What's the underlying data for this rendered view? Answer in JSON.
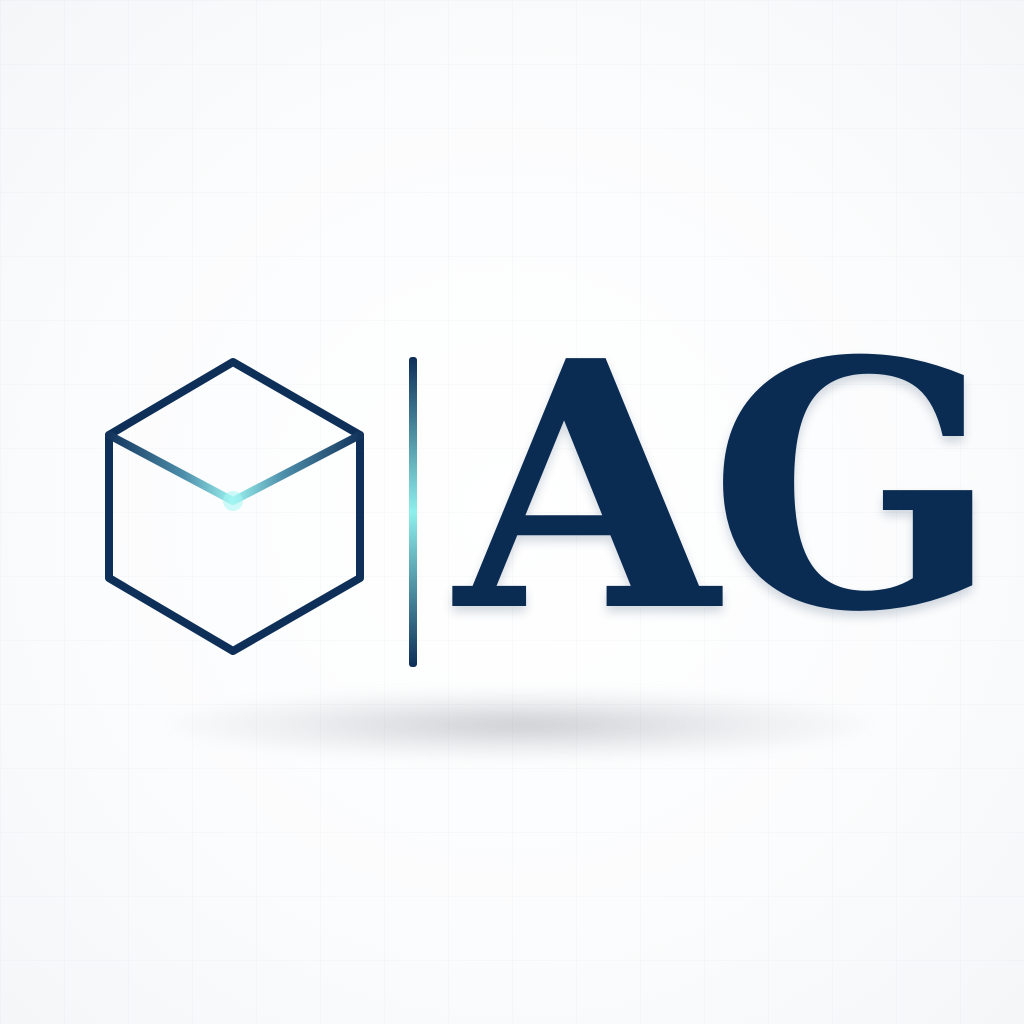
{
  "logo": {
    "wordmark": "AG",
    "icon": "cube-icon",
    "colors": {
      "primary": "#0a2b52",
      "accent_glow": "#7fe3e6",
      "background": "#ffffff"
    }
  }
}
